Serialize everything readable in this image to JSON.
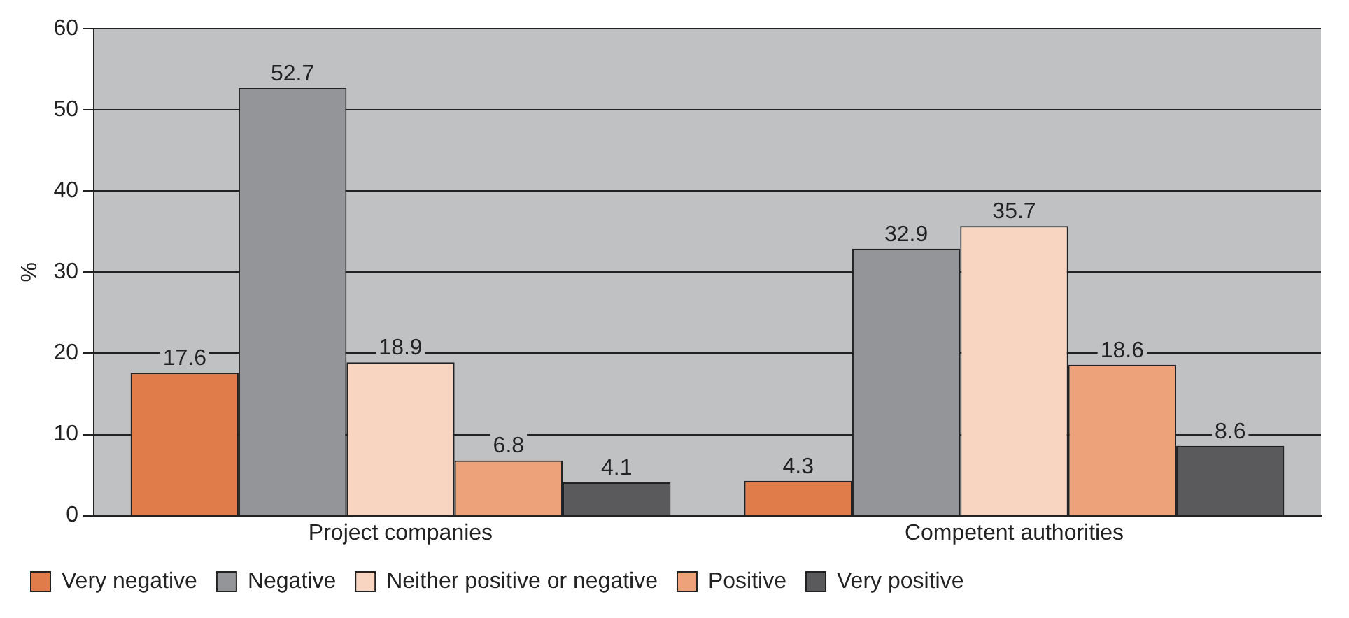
{
  "chart_data": {
    "type": "bar",
    "ylabel": "%",
    "categories": [
      "Project companies",
      "Competent authorities"
    ],
    "series": [
      {
        "name": "Very negative",
        "color": "#e07b4a",
        "values": [
          17.6,
          4.3
        ]
      },
      {
        "name": "Negative",
        "color": "#939598",
        "values": [
          52.7,
          32.9
        ]
      },
      {
        "name": "Neither positive or negative",
        "color": "#f8d5c0",
        "values": [
          18.9,
          35.7
        ]
      },
      {
        "name": "Positive",
        "color": "#eda27a",
        "values": [
          6.8,
          18.6
        ]
      },
      {
        "name": "Very positive",
        "color": "#5a5a5c",
        "values": [
          4.1,
          8.6
        ]
      }
    ],
    "ylim": [
      0,
      60
    ],
    "yticks": [
      0,
      10,
      20,
      30,
      40,
      50,
      60
    ],
    "grid": "y",
    "legend": "bottom",
    "data_labels": true
  }
}
